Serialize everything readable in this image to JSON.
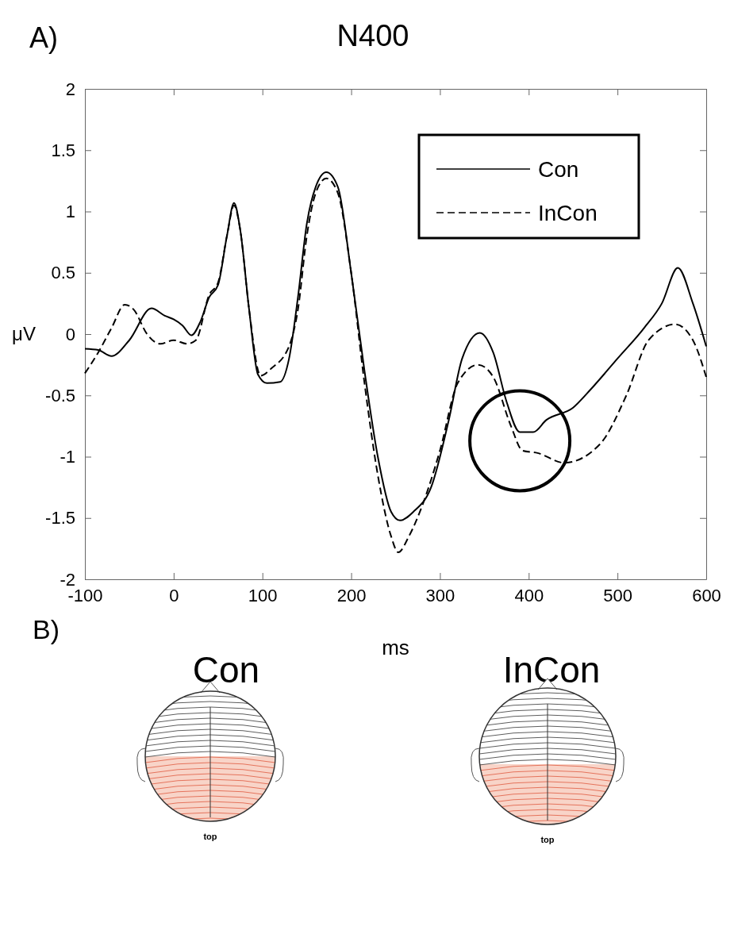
{
  "chart_data": {
    "type": "line",
    "title": "N400",
    "xlabel": "ms",
    "ylabel": "μV",
    "xlim": [
      -100,
      600
    ],
    "xticks": [
      -100,
      0,
      100,
      200,
      300,
      400,
      500,
      600
    ],
    "ylim": [
      -2,
      2
    ],
    "yticks": [
      -2,
      -1.5,
      -1,
      -0.5,
      0,
      0.5,
      1,
      1.5,
      2
    ],
    "grid": false,
    "legend": "top right",
    "marker": "none",
    "annotations": [
      "A)",
      "B)",
      "Con",
      "InCon",
      "top",
      "top"
    ],
    "series": [
      {
        "name": "Con",
        "color": "#000000",
        "line_style": "solid",
        "x": [
          -100,
          -85,
          -70,
          -50,
          -25,
          -10,
          0,
          10,
          20,
          30,
          40,
          50,
          60,
          68,
          75,
          85,
          95,
          105,
          120,
          130,
          140,
          150,
          160,
          172,
          185,
          200,
          215,
          230,
          245,
          255,
          270,
          290,
          310,
          325,
          345,
          360,
          375,
          390,
          405,
          420,
          450,
          470,
          500,
          530,
          550,
          568,
          585,
          600
        ],
        "values": [
          -0.12,
          -0.13,
          -0.18,
          -0.05,
          0.21,
          0.15,
          0.12,
          0.07,
          -0.01,
          0.1,
          0.3,
          0.4,
          0.8,
          1.07,
          0.85,
          0.2,
          -0.33,
          -0.4,
          -0.39,
          -0.2,
          0.3,
          0.9,
          1.2,
          1.32,
          1.2,
          0.5,
          -0.3,
          -1.0,
          -1.45,
          -1.52,
          -1.45,
          -1.25,
          -0.7,
          -0.2,
          0.01,
          -0.15,
          -0.55,
          -0.8,
          -0.8,
          -0.7,
          -0.6,
          -0.45,
          -0.2,
          0.05,
          0.25,
          0.54,
          0.25,
          -0.1
        ]
      },
      {
        "name": "InCon",
        "color": "#000000",
        "line_style": "dashed",
        "x": [
          -100,
          -85,
          -70,
          -55,
          -45,
          -30,
          -15,
          0,
          15,
          25,
          40,
          50,
          60,
          68,
          75,
          85,
          98,
          110,
          130,
          140,
          150,
          160,
          172,
          185,
          200,
          215,
          230,
          245,
          253,
          265,
          280,
          300,
          320,
          343,
          360,
          380,
          393,
          410,
          440,
          480,
          510,
          535,
          565,
          585,
          600
        ],
        "values": [
          -0.32,
          -0.15,
          0.05,
          0.24,
          0.2,
          0.0,
          -0.08,
          -0.05,
          -0.08,
          -0.05,
          0.32,
          0.42,
          0.8,
          1.05,
          0.85,
          0.2,
          -0.34,
          -0.28,
          -0.1,
          0.2,
          0.8,
          1.15,
          1.27,
          1.15,
          0.5,
          -0.4,
          -1.15,
          -1.65,
          -1.78,
          -1.65,
          -1.4,
          -0.95,
          -0.4,
          -0.25,
          -0.35,
          -0.75,
          -0.95,
          -0.97,
          -1.05,
          -0.9,
          -0.5,
          -0.05,
          0.08,
          -0.05,
          -0.35
        ]
      }
    ]
  }
}
